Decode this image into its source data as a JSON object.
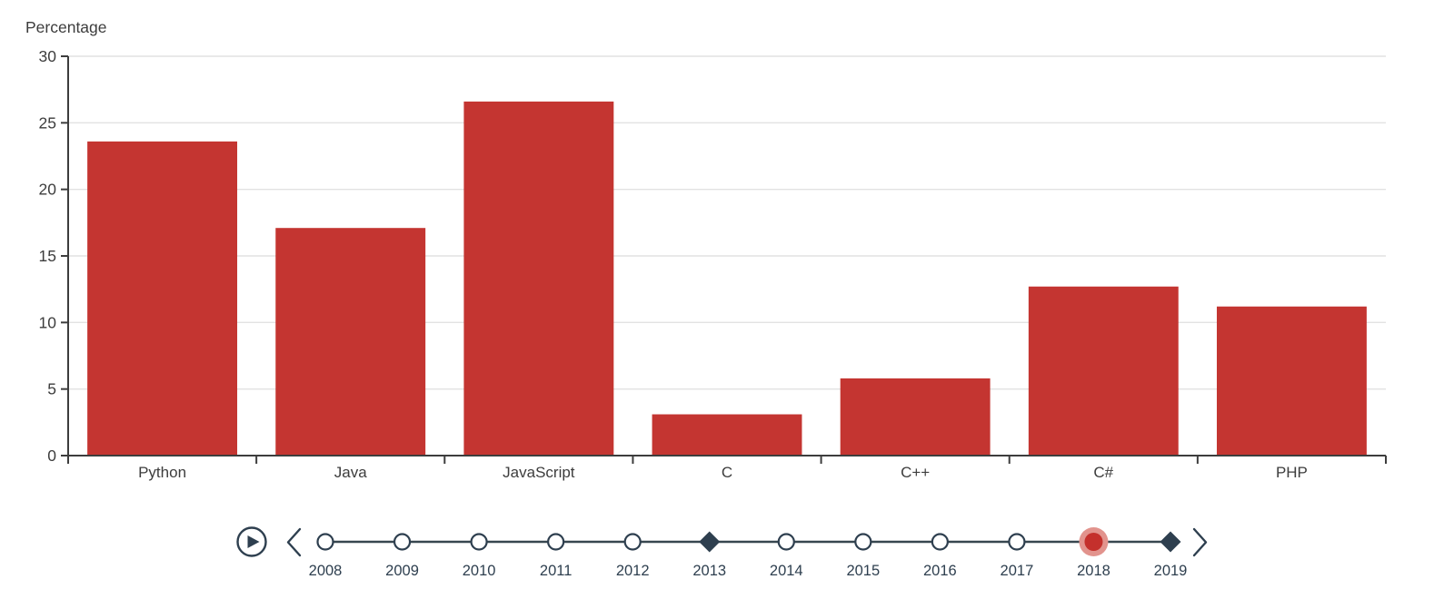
{
  "page": {
    "background": "#ffffff"
  },
  "chart_data": {
    "type": "bar",
    "title": "Percentage",
    "ylabel": "Percentage",
    "xlabel": "",
    "categories": [
      "Python",
      "Java",
      "JavaScript",
      "C",
      "C++",
      "C#",
      "PHP"
    ],
    "values": [
      23.6,
      17.1,
      26.6,
      3.1,
      5.8,
      12.7,
      11.2
    ],
    "ylim": [
      0,
      30
    ],
    "ytick_step": 5,
    "grid": true,
    "legend_position": "none",
    "bar_color": "#c43531"
  },
  "timeline": {
    "selected_year": "2018",
    "years": [
      {
        "label": "2008",
        "marker": "circle"
      },
      {
        "label": "2009",
        "marker": "circle"
      },
      {
        "label": "2010",
        "marker": "circle"
      },
      {
        "label": "2011",
        "marker": "circle"
      },
      {
        "label": "2012",
        "marker": "circle"
      },
      {
        "label": "2013",
        "marker": "diamond"
      },
      {
        "label": "2014",
        "marker": "circle"
      },
      {
        "label": "2015",
        "marker": "circle"
      },
      {
        "label": "2016",
        "marker": "circle"
      },
      {
        "label": "2017",
        "marker": "circle"
      },
      {
        "label": "2018",
        "marker": "selected"
      },
      {
        "label": "2019",
        "marker": "diamond"
      }
    ],
    "icons": {
      "play": "play-icon",
      "previous": "chevron-left-icon",
      "next": "chevron-right-icon"
    }
  },
  "colors": {
    "bar": "#c43531",
    "axis": "#3d3d3d",
    "grid": "#e2e2e2",
    "text": "#3d3d3d",
    "timeline": "#2e3f4f",
    "marker_fill": "#ffffff",
    "selected_fill": "#c4302c",
    "selected_halo": "#e2938d"
  }
}
